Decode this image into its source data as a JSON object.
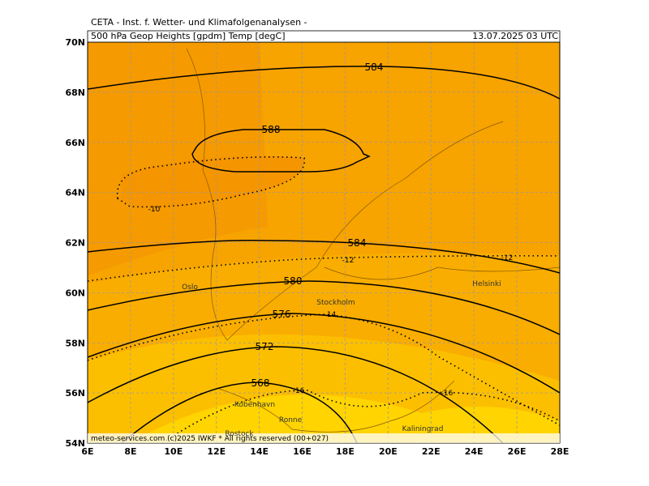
{
  "header": {
    "title": "CETA - Inst. f. Wetter- und Klimafolgenanalysen -",
    "subtitle": "500 hPa Geop Heights [gpdm] Temp [degC]",
    "date": "13.07.2025 03 UTC"
  },
  "map": {
    "lon_labels": [
      "6E",
      "8E",
      "10E",
      "12E",
      "14E",
      "16E",
      "18E",
      "20E",
      "22E",
      "24E",
      "26E",
      "28E"
    ],
    "lat_labels": [
      "70N",
      "68N",
      "66N",
      "64N",
      "62N",
      "60N",
      "58N",
      "56N",
      "54N"
    ],
    "height_labels": [
      "584",
      "588",
      "584",
      "580",
      "576",
      "572",
      "568"
    ],
    "temp_labels": [
      "-10",
      "-12",
      "-12",
      "-14",
      "-16",
      "-16"
    ],
    "cities": [
      "Oslo",
      "Stockholm",
      "Helsinki",
      "Kobenhavn",
      "Ronne",
      "Rostock",
      "Kaliningrad"
    ]
  },
  "footer": "meteo-services.com (c)2025 IWKF * All rights reserved (00+027)"
}
